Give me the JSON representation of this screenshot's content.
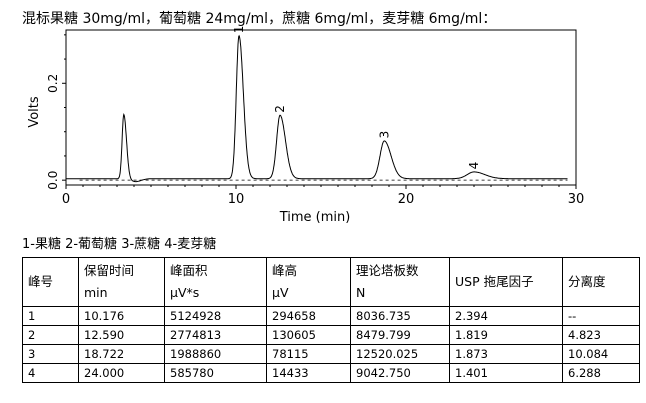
{
  "title": "混标果糖 30mg/ml，葡萄糖 24mg/ml，蔗糖 6mg/ml，麦芽糖 6mg/ml：",
  "legend_text": "1-果糖  2-葡萄糖  3-蔗糖 4-麦芽糖",
  "chart_data": {
    "type": "line",
    "title": "",
    "xlabel": "Time (min)",
    "ylabel": "Volts",
    "xlim": [
      0,
      30
    ],
    "ylim": [
      -0.01,
      0.31
    ],
    "xticks": [
      0,
      10,
      20,
      30
    ],
    "xtick_labels": [
      "0",
      "10",
      "20",
      "30"
    ],
    "yticks": [
      0.0,
      0.2
    ],
    "ytick_labels": [
      "0.0",
      "0.2"
    ],
    "grid": false,
    "baseline": 0.0,
    "peaks": [
      {
        "label": "",
        "rt": 3.4,
        "height": 0.133,
        "width": 0.1
      },
      {
        "label": "1",
        "rt": 10.176,
        "height": 0.295,
        "width": 0.16
      },
      {
        "label": "2",
        "rt": 12.59,
        "height": 0.131,
        "width": 0.2
      },
      {
        "label": "3",
        "rt": 18.722,
        "height": 0.078,
        "width": 0.25
      },
      {
        "label": "4",
        "rt": 24.0,
        "height": 0.014,
        "width": 0.4
      }
    ]
  },
  "table": {
    "headers": [
      [
        "峰号"
      ],
      [
        "保留时间",
        "min"
      ],
      [
        "峰面积",
        "μV*s"
      ],
      [
        "峰高",
        "μV"
      ],
      [
        "理论塔板数",
        "N"
      ],
      [
        "USP 拖尾因子"
      ],
      [
        "分离度"
      ]
    ],
    "rows": [
      [
        "1",
        "10.176",
        "5124928",
        "294658",
        "8036.735",
        "2.394",
        "--"
      ],
      [
        "2",
        "12.590",
        "2774813",
        "130605",
        "8479.799",
        "1.819",
        "4.823"
      ],
      [
        "3",
        "18.722",
        "1988860",
        "78115",
        "12520.025",
        "1.873",
        "10.084"
      ],
      [
        "4",
        "24.000",
        "585780",
        "14433",
        "9042.750",
        "1.401",
        "6.288"
      ]
    ]
  }
}
